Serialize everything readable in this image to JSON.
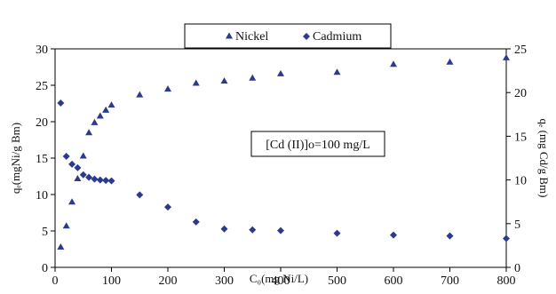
{
  "chart_data": {
    "type": "scatter",
    "title": "",
    "xlabel": "C₀(mg Ni/L)",
    "ylabel_left": "qₑ(mgNi/g Bm)",
    "ylabel_right": "qₑ (mg Cd/g Bm)",
    "xlim": [
      0,
      800
    ],
    "ylim_left": [
      0,
      30
    ],
    "ylim_right": [
      0,
      25
    ],
    "x_ticks": [
      0,
      100,
      200,
      300,
      400,
      500,
      600,
      700,
      800
    ],
    "y_left_ticks": [
      0,
      5,
      10,
      15,
      20,
      25,
      30
    ],
    "y_right_ticks": [
      0,
      5,
      10,
      15,
      20,
      25
    ],
    "grid": false,
    "legend_position": "top-center",
    "annotation": "[Cd (II)]o=100 mg/L",
    "series": [
      {
        "name": "Nickel",
        "axis": "left",
        "marker": "triangle",
        "color": "#2b3a8f",
        "x": [
          10,
          20,
          30,
          40,
          50,
          60,
          70,
          80,
          90,
          100,
          150,
          200,
          250,
          300,
          350,
          400,
          500,
          600,
          700,
          800
        ],
        "y": [
          2.8,
          5.7,
          9.0,
          12.2,
          15.3,
          18.5,
          19.9,
          20.8,
          21.6,
          22.3,
          23.7,
          24.5,
          25.3,
          25.6,
          26.0,
          26.6,
          26.8,
          27.9,
          28.2,
          28.8
        ]
      },
      {
        "name": "Cadmium",
        "axis": "right",
        "marker": "diamond",
        "color": "#2b3a8f",
        "x": [
          10,
          20,
          30,
          40,
          50,
          60,
          70,
          80,
          90,
          100,
          150,
          200,
          250,
          300,
          350,
          400,
          500,
          600,
          700,
          800
        ],
        "y": [
          18.8,
          12.7,
          11.8,
          11.4,
          10.6,
          10.3,
          10.1,
          10.0,
          9.95,
          9.9,
          8.3,
          6.9,
          5.2,
          4.4,
          4.3,
          4.2,
          3.9,
          3.7,
          3.6,
          3.3
        ]
      }
    ]
  }
}
